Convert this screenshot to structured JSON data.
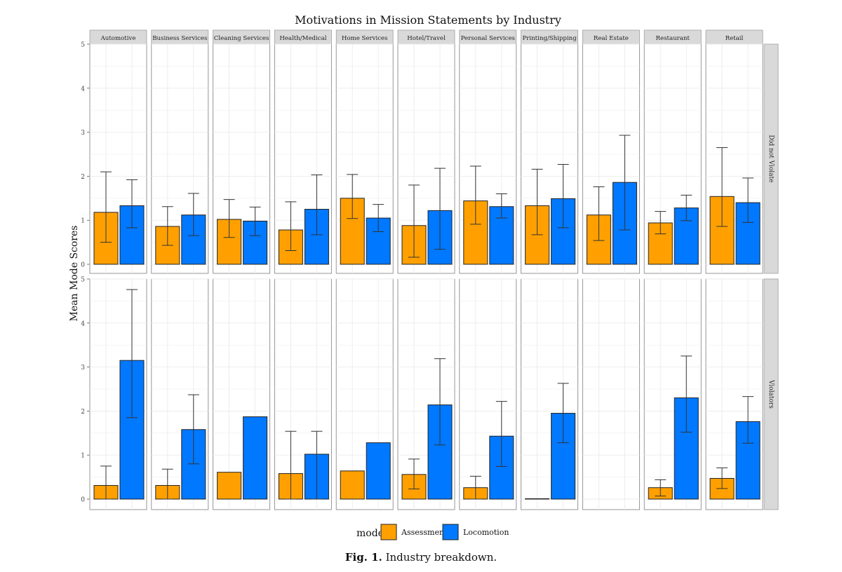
{
  "chart_data": {
    "type": "bar",
    "title": "Motivations in Mission Statements by Industry",
    "ylabel": "Mean Mode Scores",
    "xlabel": "",
    "ylim": [
      0,
      5
    ],
    "yticks": [
      "0",
      "1",
      "2",
      "3",
      "4",
      "5"
    ],
    "industries": [
      "Automotive",
      "Business Services",
      "Cleaning Services",
      "Health/Medical",
      "Home Services",
      "Hotel/Travel",
      "Personal Services",
      "Printing/Shipping",
      "Real Estate",
      "Restaurant",
      "Retail"
    ],
    "rows": [
      {
        "label": "Did not Violate",
        "series": [
          {
            "name": "Assessment",
            "values": [
              1.18,
              0.86,
              1.02,
              0.78,
              1.5,
              0.88,
              1.44,
              1.33,
              1.12,
              0.94,
              1.54
            ],
            "err_low": [
              0.5,
              0.43,
              0.61,
              0.31,
              1.04,
              0.16,
              0.91,
              0.67,
              0.54,
              0.69,
              0.86
            ],
            "err_high": [
              2.1,
              1.31,
              1.47,
              1.42,
              2.04,
              1.8,
              2.23,
              2.16,
              1.76,
              1.2,
              2.65
            ]
          },
          {
            "name": "Locomotion",
            "values": [
              1.33,
              1.12,
              0.98,
              1.25,
              1.05,
              1.22,
              1.31,
              1.49,
              1.86,
              1.28,
              1.4
            ],
            "err_low": [
              0.83,
              0.65,
              0.65,
              0.67,
              0.74,
              0.34,
              1.05,
              0.83,
              0.78,
              0.99,
              0.95
            ],
            "err_high": [
              1.92,
              1.61,
              1.3,
              2.03,
              1.36,
              2.18,
              1.6,
              2.27,
              2.93,
              1.57,
              1.96
            ]
          }
        ]
      },
      {
        "label": "Violators",
        "series": [
          {
            "name": "Assessment",
            "values": [
              0.31,
              0.31,
              0.61,
              0.58,
              0.64,
              0.56,
              0.26,
              0.0,
              null,
              0.26,
              0.47
            ],
            "err_low": [
              0.0,
              0.0,
              null,
              0.0,
              null,
              0.23,
              0.0,
              null,
              null,
              0.07,
              0.24
            ],
            "err_high": [
              0.75,
              0.68,
              null,
              1.54,
              null,
              0.91,
              0.52,
              null,
              null,
              0.44,
              0.71
            ]
          },
          {
            "name": "Locomotion",
            "values": [
              3.15,
              1.58,
              1.87,
              1.02,
              1.28,
              2.14,
              1.43,
              1.95,
              null,
              2.3,
              1.76
            ],
            "err_low": [
              1.85,
              0.8,
              null,
              0.0,
              null,
              1.23,
              0.74,
              1.28,
              null,
              1.52,
              1.27
            ],
            "err_high": [
              4.76,
              2.37,
              null,
              1.54,
              null,
              3.19,
              2.22,
              2.63,
              null,
              3.25,
              2.33
            ]
          }
        ]
      }
    ],
    "legend": {
      "title": "mode",
      "position": "bottom",
      "items": [
        "Assessment",
        "Locomotion"
      ]
    },
    "colors": {
      "Assessment": "#ffa000",
      "Locomotion": "#0078ff",
      "panel_bg": "#ffffff",
      "strip_bg": "#d9d9d9",
      "grid": "#ebebeb"
    }
  },
  "caption": {
    "label": "Fig. 1.",
    "text": "Industry breakdown."
  }
}
